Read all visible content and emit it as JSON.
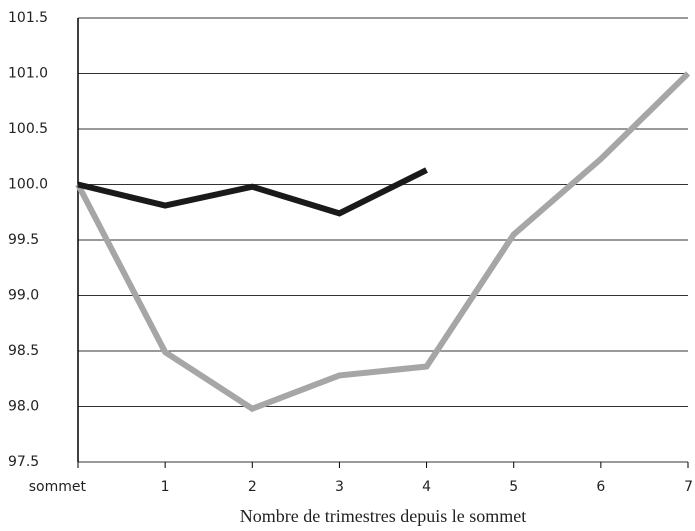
{
  "chart_data": {
    "type": "line",
    "x_label": "Nombre de trimestres depuis le sommet",
    "categories": [
      "sommet",
      "1",
      "2",
      "3",
      "4",
      "5",
      "6",
      "7"
    ],
    "series": [
      {
        "color": "#1a1a1a",
        "values": [
          100.0,
          99.81,
          99.98,
          99.74,
          100.13,
          null,
          null,
          null
        ]
      },
      {
        "color": "#a6a6a6",
        "values": [
          100.0,
          98.49,
          97.98,
          98.28,
          98.36,
          99.55,
          100.23,
          101.0
        ]
      }
    ],
    "ylim": [
      97.5,
      101.5
    ],
    "yticks": [
      97.5,
      {
        "value": 98,
        "label": "98.0"
      },
      98.5,
      {
        "value": 99,
        "label": "99.0"
      },
      99.5,
      {
        "value": 100,
        "label": "100.0"
      },
      100.5,
      {
        "value": 101,
        "label": "101.0"
      },
      101.5
    ],
    "grid": true
  }
}
